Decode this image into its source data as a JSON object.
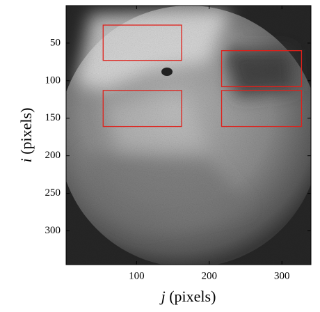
{
  "chart_data": {
    "type": "image",
    "xlabel": "j (pixels)",
    "ylabel": "i (pixels)",
    "xlim": [
      3,
      340
    ],
    "xticks": [
      100,
      200,
      300
    ],
    "ylim": [
      0,
      345
    ],
    "yticks": [
      50,
      100,
      150,
      200,
      250,
      300
    ],
    "y_inverted": true,
    "rect_color": "#e0201a",
    "rectangles": [
      {
        "j": [
          54,
          162
        ],
        "i": [
          26,
          73
        ]
      },
      {
        "j": [
          54,
          162
        ],
        "i": [
          113,
          161
        ]
      },
      {
        "j": [
          217,
          327
        ],
        "i": [
          60,
          108
        ]
      },
      {
        "j": [
          217,
          327
        ],
        "i": [
          113,
          161
        ]
      }
    ]
  }
}
